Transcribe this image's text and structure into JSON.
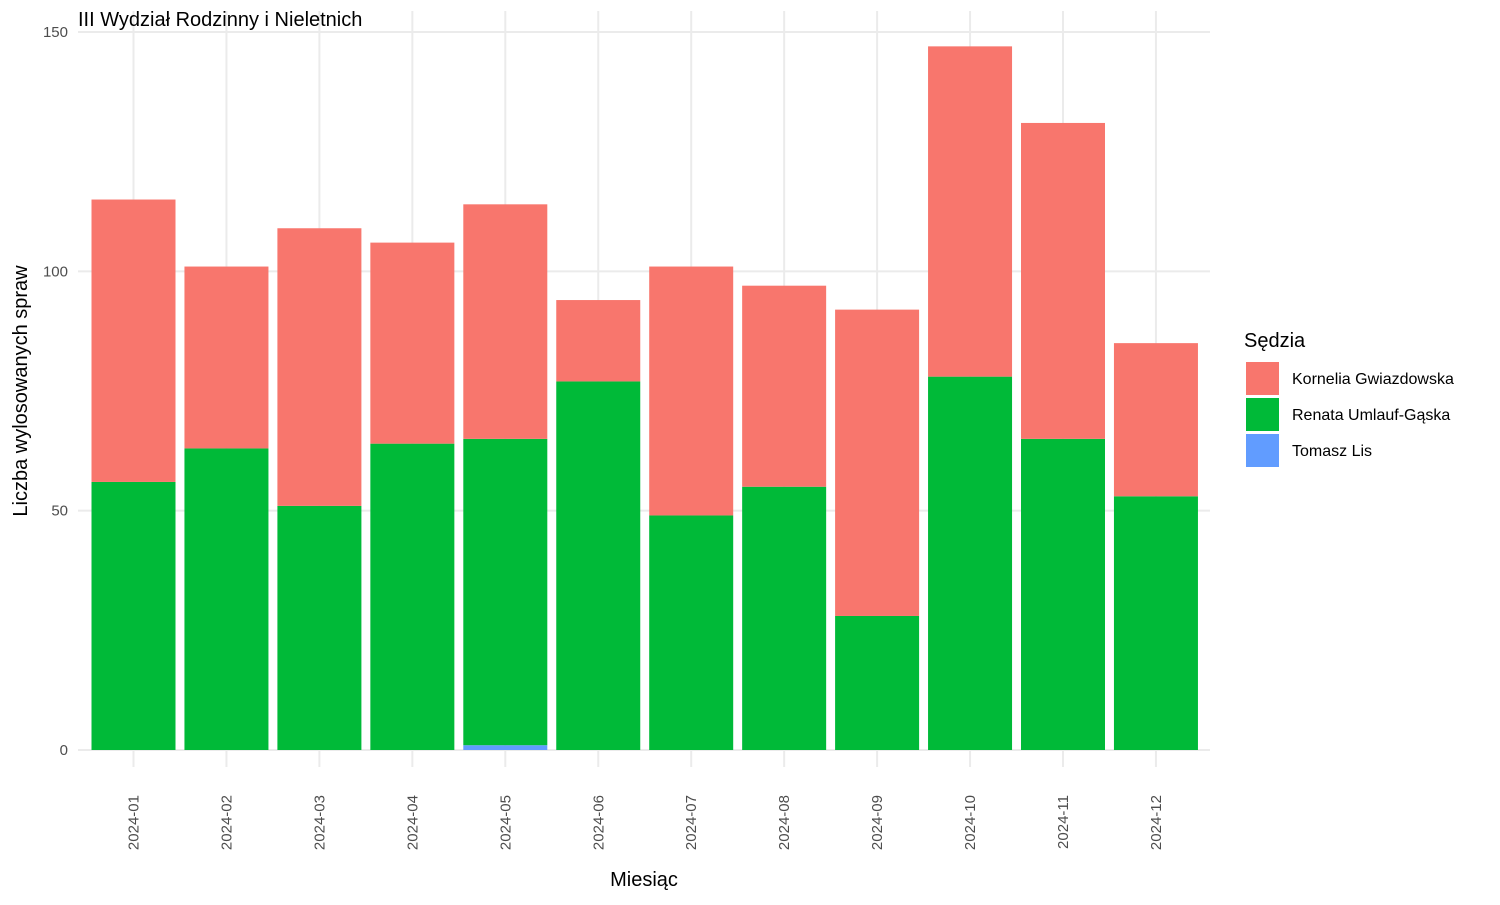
{
  "chart_data": {
    "type": "bar",
    "stacked": true,
    "title": "III Wydział Rodzinny i Nieletnich",
    "xlabel": "Miesiąc",
    "ylabel": "Liczba wylosowanych spraw",
    "ylim": [
      0,
      150
    ],
    "y_ticks": [
      0,
      50,
      100,
      150
    ],
    "grid": true,
    "legend": {
      "title": "Sędzia",
      "position": "right"
    },
    "categories": [
      "2024-01",
      "2024-02",
      "2024-03",
      "2024-04",
      "2024-05",
      "2024-06",
      "2024-07",
      "2024-08",
      "2024-09",
      "2024-10",
      "2024-11",
      "2024-12"
    ],
    "stack_order": [
      "Tomasz Lis",
      "Renata Umlauf-Gąska",
      "Kornelia Gwiazdowska"
    ],
    "series": [
      {
        "name": "Kornelia Gwiazdowska",
        "color": "#F8766D",
        "values": [
          59,
          38,
          58,
          42,
          49,
          17,
          52,
          42,
          64,
          69,
          66,
          32
        ]
      },
      {
        "name": "Renata Umlauf-Gąska",
        "color": "#00BA38",
        "values": [
          56,
          63,
          51,
          64,
          64,
          77,
          49,
          55,
          28,
          78,
          65,
          53
        ]
      },
      {
        "name": "Tomasz Lis",
        "color": "#619CFF",
        "values": [
          0,
          0,
          0,
          0,
          1,
          0,
          0,
          0,
          0,
          0,
          0,
          0
        ]
      }
    ]
  }
}
